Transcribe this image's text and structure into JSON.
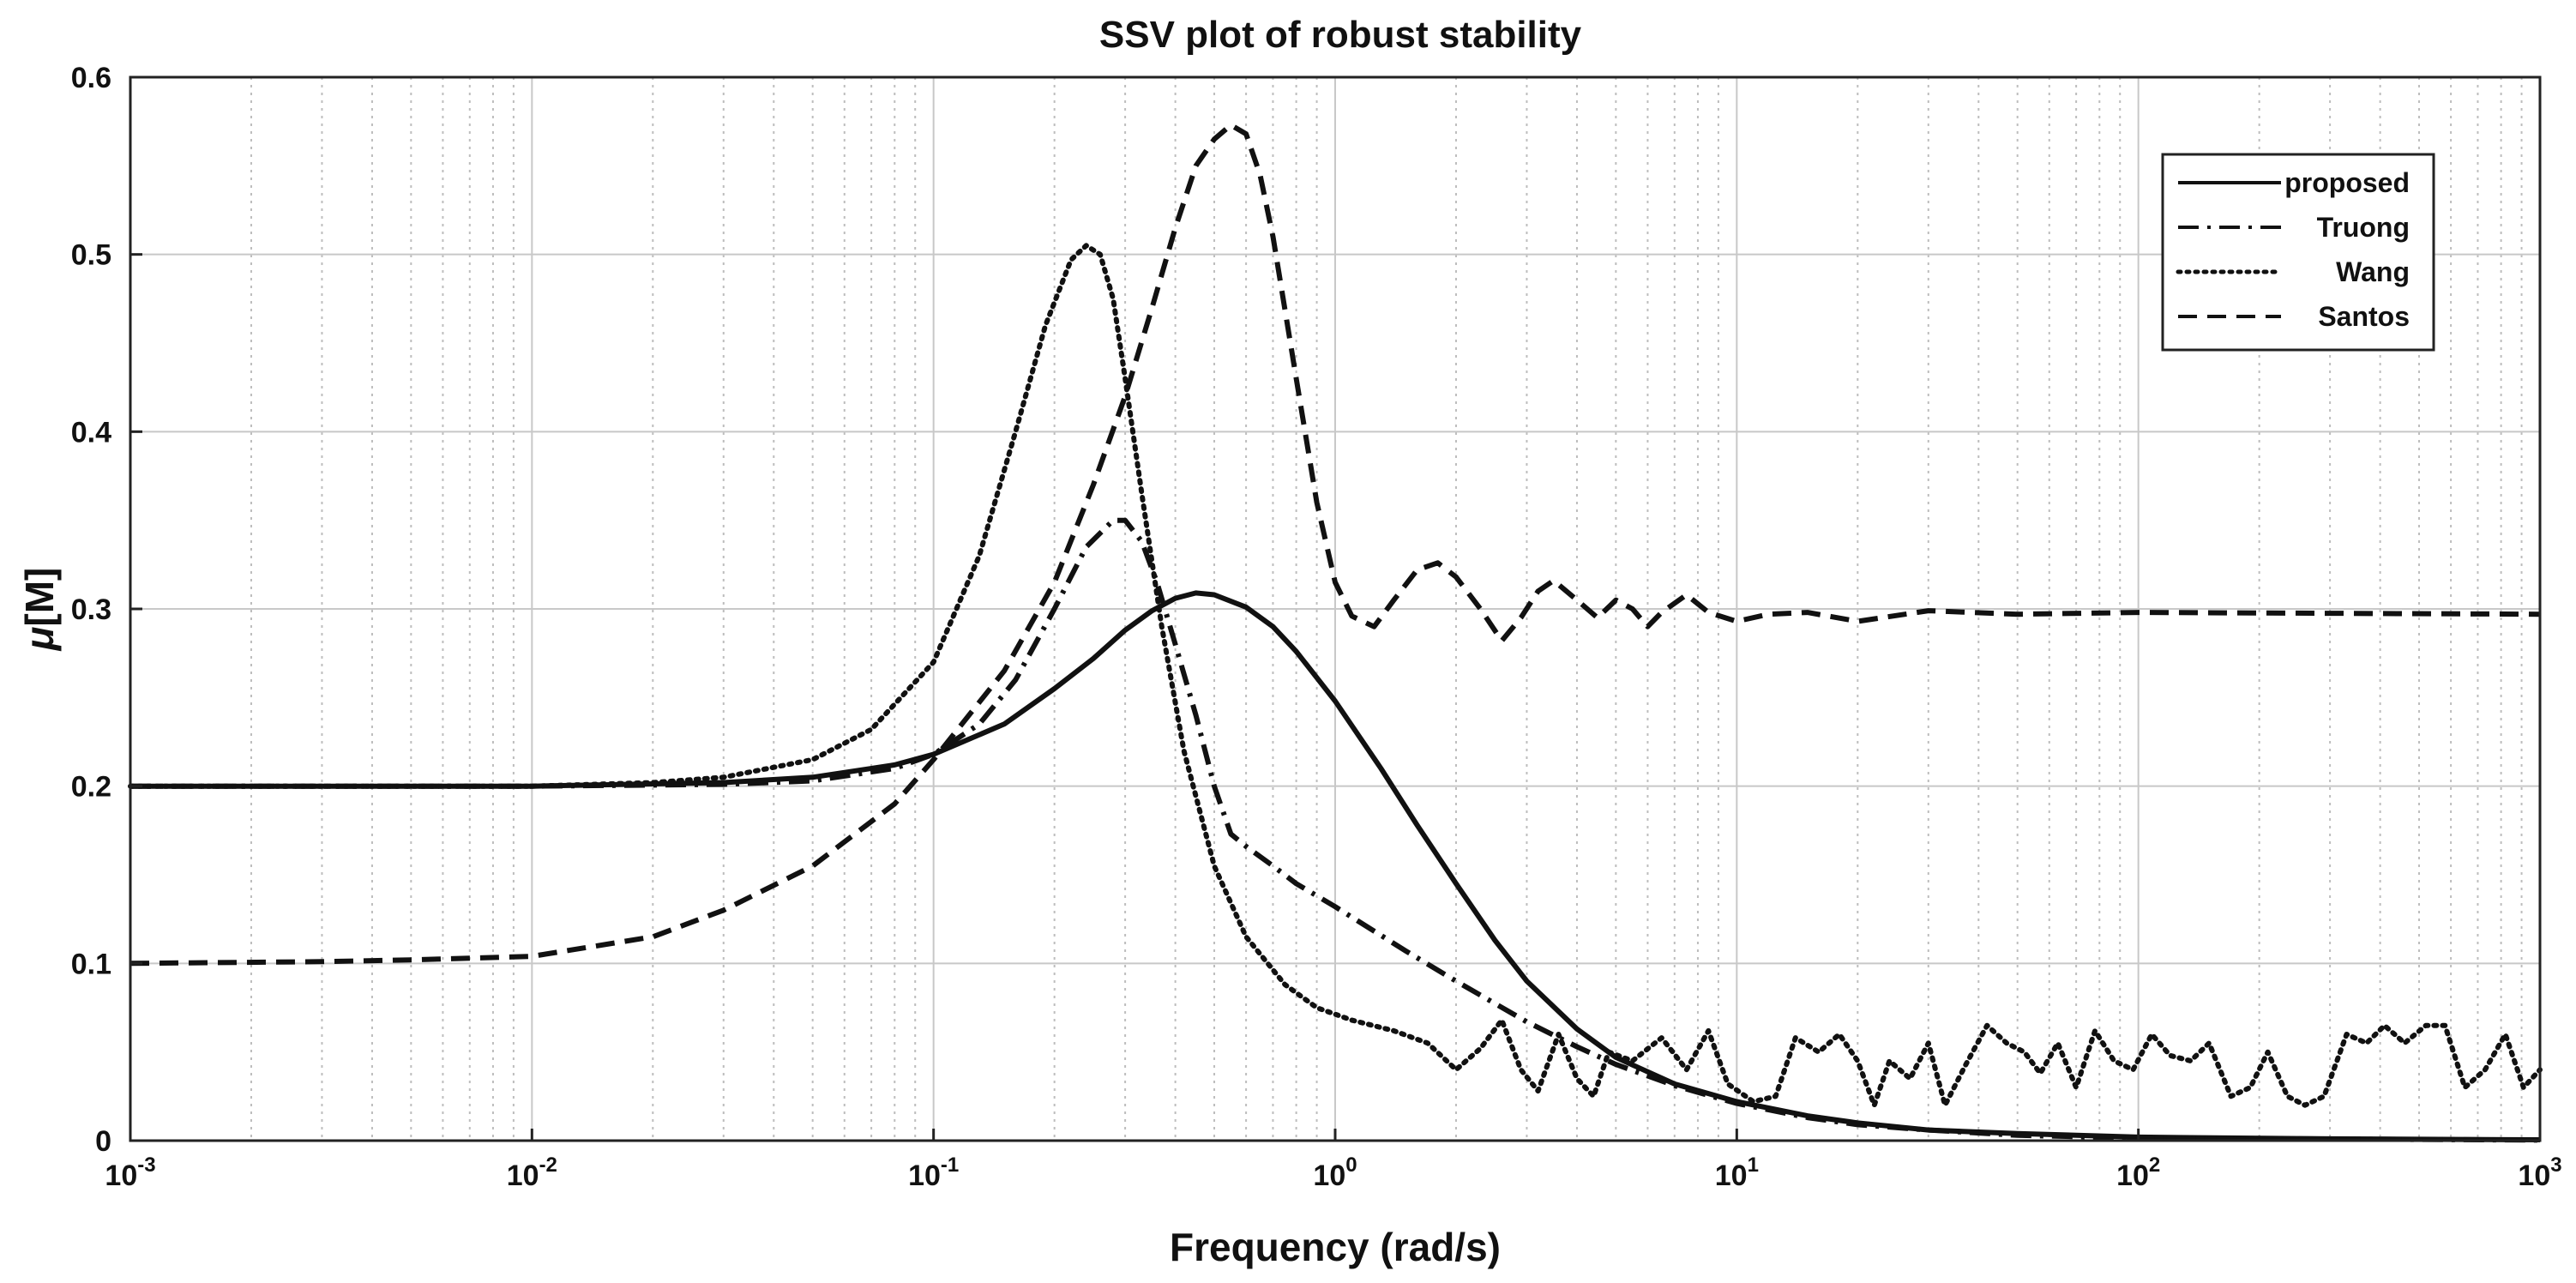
{
  "chart_data": {
    "type": "line",
    "title": "SSV plot of robust stability",
    "xlabel": "Frequency  (rad/s)",
    "ylabel_symbol": "μ",
    "ylabel_text": "[M]",
    "xscale": "log",
    "xlim": [
      0.001,
      1000
    ],
    "ylim": [
      0,
      0.6
    ],
    "grid": true,
    "legend_position": "top-right",
    "x_ticks": [
      {
        "base": "10",
        "exp": "-3",
        "value": 0.001
      },
      {
        "base": "10",
        "exp": "-2",
        "value": 0.01
      },
      {
        "base": "10",
        "exp": "-1",
        "value": 0.1
      },
      {
        "base": "10",
        "exp": "0",
        "value": 1
      },
      {
        "base": "10",
        "exp": "1",
        "value": 10
      },
      {
        "base": "10",
        "exp": "2",
        "value": 100
      },
      {
        "base": "10",
        "exp": "3",
        "value": 1000
      }
    ],
    "y_ticks": [
      "0",
      "0.1",
      "0.2",
      "0.3",
      "0.4",
      "0.5",
      "0.6"
    ],
    "series": [
      {
        "name": "proposed",
        "style": "solid",
        "points": [
          [
            0.001,
            0.2
          ],
          [
            0.01,
            0.2
          ],
          [
            0.03,
            0.202
          ],
          [
            0.05,
            0.205
          ],
          [
            0.08,
            0.212
          ],
          [
            0.1,
            0.218
          ],
          [
            0.15,
            0.235
          ],
          [
            0.2,
            0.255
          ],
          [
            0.25,
            0.272
          ],
          [
            0.3,
            0.288
          ],
          [
            0.35,
            0.299
          ],
          [
            0.4,
            0.306
          ],
          [
            0.45,
            0.309
          ],
          [
            0.5,
            0.308
          ],
          [
            0.6,
            0.301
          ],
          [
            0.7,
            0.29
          ],
          [
            0.8,
            0.276
          ],
          [
            1.0,
            0.248
          ],
          [
            1.3,
            0.21
          ],
          [
            1.6,
            0.178
          ],
          [
            2.0,
            0.145
          ],
          [
            2.5,
            0.113
          ],
          [
            3.0,
            0.09
          ],
          [
            4.0,
            0.063
          ],
          [
            5.0,
            0.047
          ],
          [
            7.0,
            0.032
          ],
          [
            10,
            0.022
          ],
          [
            15,
            0.014
          ],
          [
            20,
            0.01
          ],
          [
            30,
            0.006
          ],
          [
            50,
            0.004
          ],
          [
            100,
            0.002
          ],
          [
            300,
            0.001
          ],
          [
            1000,
            0.0005
          ]
        ]
      },
      {
        "name": "Truong",
        "style": "dashdot",
        "points": [
          [
            0.001,
            0.2
          ],
          [
            0.01,
            0.2
          ],
          [
            0.03,
            0.201
          ],
          [
            0.05,
            0.203
          ],
          [
            0.08,
            0.21
          ],
          [
            0.1,
            0.218
          ],
          [
            0.13,
            0.235
          ],
          [
            0.16,
            0.26
          ],
          [
            0.2,
            0.3
          ],
          [
            0.24,
            0.335
          ],
          [
            0.28,
            0.35
          ],
          [
            0.3,
            0.35
          ],
          [
            0.33,
            0.338
          ],
          [
            0.36,
            0.315
          ],
          [
            0.4,
            0.28
          ],
          [
            0.45,
            0.24
          ],
          [
            0.5,
            0.2
          ],
          [
            0.55,
            0.173
          ],
          [
            0.6,
            0.166
          ],
          [
            0.7,
            0.155
          ],
          [
            0.8,
            0.145
          ],
          [
            1.0,
            0.132
          ],
          [
            1.5,
            0.107
          ],
          [
            2.0,
            0.09
          ],
          [
            3.0,
            0.067
          ],
          [
            4.0,
            0.053
          ],
          [
            5.0,
            0.043
          ],
          [
            7.0,
            0.031
          ],
          [
            10,
            0.021
          ],
          [
            15,
            0.013
          ],
          [
            20,
            0.009
          ],
          [
            30,
            0.006
          ],
          [
            50,
            0.003
          ],
          [
            100,
            0.0015
          ],
          [
            1000,
            0.0003
          ]
        ]
      },
      {
        "name": "Wang",
        "style": "dotted",
        "points": [
          [
            0.001,
            0.2
          ],
          [
            0.01,
            0.2
          ],
          [
            0.02,
            0.202
          ],
          [
            0.03,
            0.205
          ],
          [
            0.05,
            0.215
          ],
          [
            0.07,
            0.232
          ],
          [
            0.1,
            0.27
          ],
          [
            0.13,
            0.33
          ],
          [
            0.16,
            0.4
          ],
          [
            0.19,
            0.46
          ],
          [
            0.22,
            0.497
          ],
          [
            0.24,
            0.505
          ],
          [
            0.26,
            0.5
          ],
          [
            0.28,
            0.475
          ],
          [
            0.3,
            0.43
          ],
          [
            0.33,
            0.365
          ],
          [
            0.37,
            0.29
          ],
          [
            0.42,
            0.22
          ],
          [
            0.5,
            0.155
          ],
          [
            0.6,
            0.115
          ],
          [
            0.75,
            0.088
          ],
          [
            0.9,
            0.075
          ],
          [
            1.1,
            0.068
          ],
          [
            1.4,
            0.062
          ],
          [
            1.7,
            0.055
          ],
          [
            2.0,
            0.04
          ],
          [
            2.3,
            0.052
          ],
          [
            2.6,
            0.068
          ],
          [
            2.9,
            0.04
          ],
          [
            3.2,
            0.028
          ],
          [
            3.6,
            0.06
          ],
          [
            4.0,
            0.035
          ],
          [
            4.4,
            0.025
          ],
          [
            4.8,
            0.05
          ],
          [
            5.5,
            0.045
          ],
          [
            6.5,
            0.058
          ],
          [
            7.5,
            0.04
          ],
          [
            8.5,
            0.062
          ],
          [
            9.5,
            0.032
          ],
          [
            11,
            0.022
          ],
          [
            12.5,
            0.025
          ],
          [
            14,
            0.058
          ],
          [
            16,
            0.05
          ],
          [
            18,
            0.06
          ],
          [
            20,
            0.045
          ],
          [
            22,
            0.02
          ],
          [
            24,
            0.045
          ],
          [
            27,
            0.035
          ],
          [
            30,
            0.055
          ],
          [
            33,
            0.02
          ],
          [
            37,
            0.042
          ],
          [
            42,
            0.065
          ],
          [
            47,
            0.055
          ],
          [
            52,
            0.05
          ],
          [
            57,
            0.038
          ],
          [
            63,
            0.055
          ],
          [
            70,
            0.03
          ],
          [
            78,
            0.062
          ],
          [
            87,
            0.045
          ],
          [
            97,
            0.04
          ],
          [
            108,
            0.06
          ],
          [
            120,
            0.048
          ],
          [
            135,
            0.045
          ],
          [
            150,
            0.055
          ],
          [
            170,
            0.025
          ],
          [
            190,
            0.03
          ],
          [
            210,
            0.05
          ],
          [
            235,
            0.025
          ],
          [
            260,
            0.02
          ],
          [
            290,
            0.025
          ],
          [
            330,
            0.06
          ],
          [
            370,
            0.055
          ],
          [
            410,
            0.065
          ],
          [
            460,
            0.055
          ],
          [
            520,
            0.065
          ],
          [
            580,
            0.065
          ],
          [
            650,
            0.03
          ],
          [
            730,
            0.04
          ],
          [
            820,
            0.06
          ],
          [
            910,
            0.03
          ],
          [
            1000,
            0.04
          ]
        ]
      },
      {
        "name": "Santos",
        "style": "dashed",
        "points": [
          [
            0.001,
            0.1
          ],
          [
            0.003,
            0.101
          ],
          [
            0.005,
            0.102
          ],
          [
            0.01,
            0.104
          ],
          [
            0.02,
            0.115
          ],
          [
            0.03,
            0.13
          ],
          [
            0.05,
            0.155
          ],
          [
            0.08,
            0.19
          ],
          [
            0.1,
            0.215
          ],
          [
            0.15,
            0.265
          ],
          [
            0.2,
            0.315
          ],
          [
            0.25,
            0.37
          ],
          [
            0.3,
            0.42
          ],
          [
            0.35,
            0.47
          ],
          [
            0.4,
            0.515
          ],
          [
            0.45,
            0.55
          ],
          [
            0.5,
            0.565
          ],
          [
            0.55,
            0.573
          ],
          [
            0.6,
            0.568
          ],
          [
            0.65,
            0.545
          ],
          [
            0.7,
            0.51
          ],
          [
            0.8,
            0.43
          ],
          [
            0.9,
            0.36
          ],
          [
            1.0,
            0.315
          ],
          [
            1.1,
            0.296
          ],
          [
            1.25,
            0.29
          ],
          [
            1.4,
            0.305
          ],
          [
            1.6,
            0.322
          ],
          [
            1.8,
            0.326
          ],
          [
            2.0,
            0.318
          ],
          [
            2.3,
            0.3
          ],
          [
            2.6,
            0.282
          ],
          [
            2.9,
            0.295
          ],
          [
            3.2,
            0.31
          ],
          [
            3.5,
            0.316
          ],
          [
            4.0,
            0.305
          ],
          [
            4.5,
            0.295
          ],
          [
            5.0,
            0.305
          ],
          [
            5.5,
            0.3
          ],
          [
            6.0,
            0.29
          ],
          [
            6.5,
            0.298
          ],
          [
            7.5,
            0.308
          ],
          [
            8.5,
            0.298
          ],
          [
            10,
            0.293
          ],
          [
            12,
            0.297
          ],
          [
            15,
            0.298
          ],
          [
            20,
            0.293
          ],
          [
            30,
            0.299
          ],
          [
            50,
            0.297
          ],
          [
            100,
            0.298
          ],
          [
            1000,
            0.297
          ]
        ]
      }
    ]
  }
}
